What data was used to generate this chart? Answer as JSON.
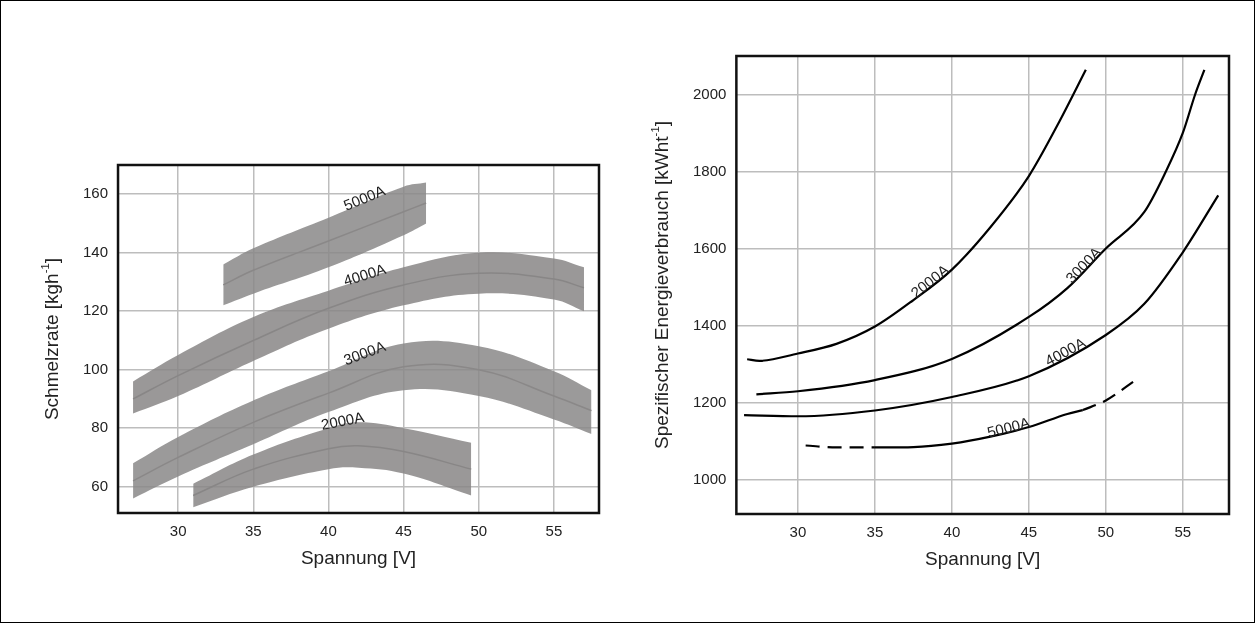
{
  "chart_data": [
    {
      "type": "line",
      "xlabel": "Spannung [V]",
      "ylabel": "Schmelzrate [kgh$^{-1}$]",
      "xlim": [
        26,
        58
      ],
      "ylim": [
        51,
        170
      ],
      "xticks": [
        30,
        35,
        40,
        45,
        50,
        55
      ],
      "yticks": [
        60,
        80,
        100,
        120,
        140,
        160
      ],
      "grid": true,
      "marker": "none",
      "series": [
        {
          "name": "5000A",
          "color": "#8a8888",
          "x": [
            33,
            35,
            40,
            45,
            46.5
          ],
          "values": [
            129,
            134,
            144,
            154,
            157
          ],
          "lower": [
            122,
            126,
            135,
            146,
            150
          ],
          "upper": [
            136,
            141.5,
            152,
            162.6,
            164
          ]
        },
        {
          "name": "4000A",
          "color": "#888686",
          "x": [
            27,
            30,
            35,
            40,
            45,
            50,
            55,
            57
          ],
          "values": [
            90,
            98,
            110,
            121,
            129,
            133,
            131,
            128
          ],
          "lower": [
            85,
            91,
            103,
            114,
            122,
            126,
            124,
            120
          ],
          "upper": [
            96,
            105,
            118,
            127,
            135,
            140,
            138,
            135
          ]
        },
        {
          "name": "3000A",
          "color": "#8a8888",
          "x": [
            27,
            30,
            35,
            40,
            45,
            50,
            55,
            57.5
          ],
          "values": [
            62,
            70,
            82,
            92,
            101,
            100,
            91,
            86
          ],
          "lower": [
            56,
            63.5,
            74.5,
            85.5,
            93,
            91,
            83,
            78
          ],
          "upper": [
            68,
            77,
            89.5,
            99.5,
            109,
            108,
            99.5,
            93
          ]
        },
        {
          "name": "2000A",
          "color": "#888686",
          "x": [
            31,
            35,
            40,
            42,
            45,
            49.5
          ],
          "values": [
            57,
            66,
            73,
            74,
            72,
            66
          ],
          "lower": [
            53,
            60,
            66,
            66.5,
            64.5,
            57
          ],
          "upper": [
            61,
            71,
            80,
            82,
            80,
            75
          ]
        }
      ]
    },
    {
      "type": "line",
      "xlabel": "Spannung [V]",
      "ylabel": "Spezifischer Energieverbrauch [kWht$^{-1}$]",
      "xlim": [
        26,
        58
      ],
      "ylim": [
        910,
        2100
      ],
      "xticks": [
        30,
        35,
        40,
        45,
        50,
        55
      ],
      "yticks": [
        1000,
        1200,
        1400,
        1600,
        1800,
        2000
      ],
      "grid": true,
      "marker": "none",
      "series": [
        {
          "name": "2000A",
          "color": "#000000",
          "x": [
            26.7,
            27.5,
            30,
            32.5,
            35,
            37.5,
            40,
            42.5,
            45,
            47,
            48.7
          ],
          "values": [
            1312,
            1308,
            1327,
            1352,
            1397,
            1466,
            1545,
            1655,
            1788,
            1931,
            2064
          ]
        },
        {
          "name": "3000A",
          "color": "#000000",
          "x": [
            27.3,
            30,
            35,
            40,
            45,
            47.5,
            50,
            52.5,
            53.9,
            55,
            55.8,
            56.4
          ],
          "values": [
            1221,
            1229,
            1258,
            1313,
            1422,
            1497,
            1600,
            1695,
            1800,
            1900,
            2000,
            2064
          ]
        },
        {
          "name": "4000A",
          "color": "#000000",
          "x": [
            26.5,
            30,
            35,
            40,
            45,
            50,
            52.5,
            55,
            57.3
          ],
          "values": [
            1167,
            1164,
            1179,
            1214,
            1268,
            1375,
            1456,
            1590,
            1738
          ]
        },
        {
          "name": "5000A",
          "color": "#000000",
          "x": [
            35,
            37.5,
            40,
            42.5,
            45,
            47.5,
            48.5
          ],
          "values": [
            1083,
            1084,
            1093,
            1111,
            1136,
            1170,
            1180
          ]
        },
        {
          "color": "#000000",
          "line_style": "dashed",
          "x": [
            30.5,
            32.5,
            35
          ],
          "values": [
            1088,
            1083,
            1083
          ]
        },
        {
          "color": "#000000",
          "line_style": "dashed",
          "x": [
            48.5,
            50,
            52
          ],
          "values": [
            1180,
            1205,
            1260
          ]
        }
      ]
    }
  ]
}
